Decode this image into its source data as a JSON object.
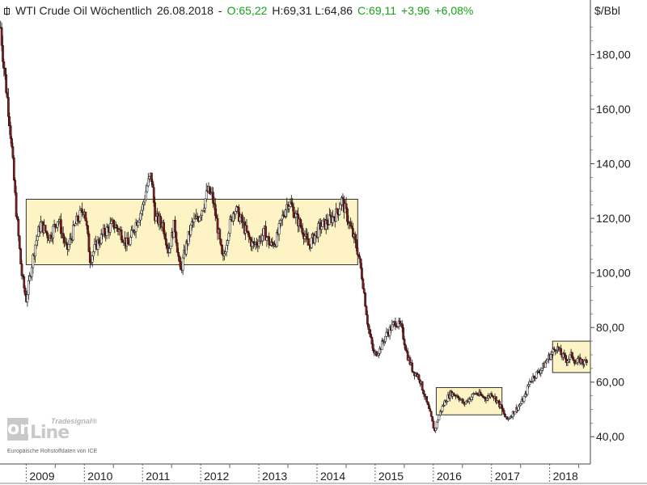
{
  "header": {
    "name": "WTI Crude Oil Wöchentlich",
    "date": "26.08.2018",
    "open": "O:65,22",
    "high_low": "H:69,31  L:64,86",
    "close": "C:69,11",
    "change": "+3,96",
    "change_pct": "+6,08%"
  },
  "unit": "$/Bbl",
  "logo": {
    "brand": "Tradesignal®",
    "prefix": "on",
    "suffix": "Line"
  },
  "source_note": "Europäische Rohstoffdaten von ICE",
  "colors": {
    "up": "#17a317",
    "candle_up": "#ffffff",
    "candle_down": "#8b1a1a",
    "range_box": "#fdf3c4",
    "grid": "#999999",
    "text": "#222222"
  },
  "chart_data": {
    "type": "candlestick",
    "title": "WTI Crude Oil Wöchentlich",
    "ylabel": "$/Bbl",
    "ylim": [
      30,
      200
    ],
    "y_ticks": [
      40,
      60,
      80,
      100,
      120,
      140,
      160,
      180
    ],
    "y_tick_labels": [
      "40,00",
      "60,00",
      "80,00",
      "100,00",
      "120,00",
      "140,00",
      "160,00",
      "180,00"
    ],
    "xlim": [
      2008.55,
      2018.7
    ],
    "x_ticks": [
      2009,
      2010,
      2011,
      2012,
      2013,
      2014,
      2015,
      2016,
      2017,
      2018
    ],
    "x_tick_labels": [
      "2009",
      "2010",
      "2011",
      "2012",
      "2013",
      "2014",
      "2015",
      "2016",
      "2017",
      "2018"
    ],
    "price_path": [
      [
        2008.56,
        190
      ],
      [
        2008.62,
        175
      ],
      [
        2008.72,
        155
      ],
      [
        2008.82,
        125
      ],
      [
        2008.92,
        100
      ],
      [
        2009.0,
        90
      ],
      [
        2009.06,
        98
      ],
      [
        2009.15,
        110
      ],
      [
        2009.25,
        118
      ],
      [
        2009.4,
        113
      ],
      [
        2009.55,
        120
      ],
      [
        2009.7,
        108
      ],
      [
        2009.85,
        118
      ],
      [
        2010.0,
        124
      ],
      [
        2010.1,
        105
      ],
      [
        2010.2,
        110
      ],
      [
        2010.35,
        115
      ],
      [
        2010.5,
        118
      ],
      [
        2010.62,
        115
      ],
      [
        2010.75,
        110
      ],
      [
        2010.88,
        118
      ],
      [
        2011.0,
        124
      ],
      [
        2011.08,
        132
      ],
      [
        2011.15,
        136
      ],
      [
        2011.22,
        120
      ],
      [
        2011.35,
        118
      ],
      [
        2011.45,
        108
      ],
      [
        2011.55,
        118
      ],
      [
        2011.65,
        100
      ],
      [
        2011.75,
        110
      ],
      [
        2011.85,
        118
      ],
      [
        2011.95,
        120
      ],
      [
        2012.05,
        125
      ],
      [
        2012.12,
        130
      ],
      [
        2012.2,
        128
      ],
      [
        2012.28,
        118
      ],
      [
        2012.38,
        104
      ],
      [
        2012.48,
        116
      ],
      [
        2012.58,
        124
      ],
      [
        2012.68,
        120
      ],
      [
        2012.8,
        114
      ],
      [
        2012.9,
        110
      ],
      [
        2013.0,
        112
      ],
      [
        2013.1,
        115
      ],
      [
        2013.2,
        110
      ],
      [
        2013.3,
        112
      ],
      [
        2013.4,
        120
      ],
      [
        2013.5,
        126
      ],
      [
        2013.55,
        125
      ],
      [
        2013.65,
        120
      ],
      [
        2013.75,
        116
      ],
      [
        2013.85,
        110
      ],
      [
        2013.95,
        113
      ],
      [
        2014.05,
        117
      ],
      [
        2014.15,
        118
      ],
      [
        2014.25,
        120
      ],
      [
        2014.35,
        122
      ],
      [
        2014.42,
        127
      ],
      [
        2014.5,
        122
      ],
      [
        2014.6,
        115
      ],
      [
        2014.7,
        108
      ],
      [
        2014.78,
        98
      ],
      [
        2014.88,
        80
      ],
      [
        2014.98,
        70
      ],
      [
        2015.08,
        72
      ],
      [
        2015.18,
        77
      ],
      [
        2015.28,
        80
      ],
      [
        2015.35,
        82
      ],
      [
        2015.45,
        80
      ],
      [
        2015.55,
        70
      ],
      [
        2015.65,
        64
      ],
      [
        2015.75,
        62
      ],
      [
        2015.85,
        55
      ],
      [
        2015.95,
        48
      ],
      [
        2016.02,
        42
      ],
      [
        2016.1,
        48
      ],
      [
        2016.2,
        53
      ],
      [
        2016.3,
        56
      ],
      [
        2016.42,
        55
      ],
      [
        2016.52,
        52
      ],
      [
        2016.62,
        54
      ],
      [
        2016.72,
        56
      ],
      [
        2016.82,
        55
      ],
      [
        2016.92,
        54
      ],
      [
        2017.0,
        56
      ],
      [
        2017.1,
        53
      ],
      [
        2017.18,
        50
      ],
      [
        2017.26,
        46
      ],
      [
        2017.34,
        48
      ],
      [
        2017.42,
        50
      ],
      [
        2017.5,
        52
      ],
      [
        2017.58,
        55
      ],
      [
        2017.65,
        60
      ],
      [
        2017.72,
        62
      ],
      [
        2017.82,
        64
      ],
      [
        2017.9,
        66
      ],
      [
        2017.98,
        69
      ],
      [
        2018.05,
        71
      ],
      [
        2018.12,
        73
      ],
      [
        2018.2,
        70
      ],
      [
        2018.3,
        68
      ],
      [
        2018.38,
        70
      ],
      [
        2018.45,
        67
      ],
      [
        2018.52,
        68
      ],
      [
        2018.6,
        67
      ],
      [
        2018.65,
        69
      ]
    ],
    "range_boxes": [
      {
        "x0": 2009.0,
        "x1": 2014.7,
        "y0": 103,
        "y1": 127
      },
      {
        "x0": 2016.05,
        "x1": 2017.18,
        "y0": 48,
        "y1": 58
      },
      {
        "x0": 2018.05,
        "x1": 2018.7,
        "y0": 63.5,
        "y1": 75
      }
    ]
  }
}
